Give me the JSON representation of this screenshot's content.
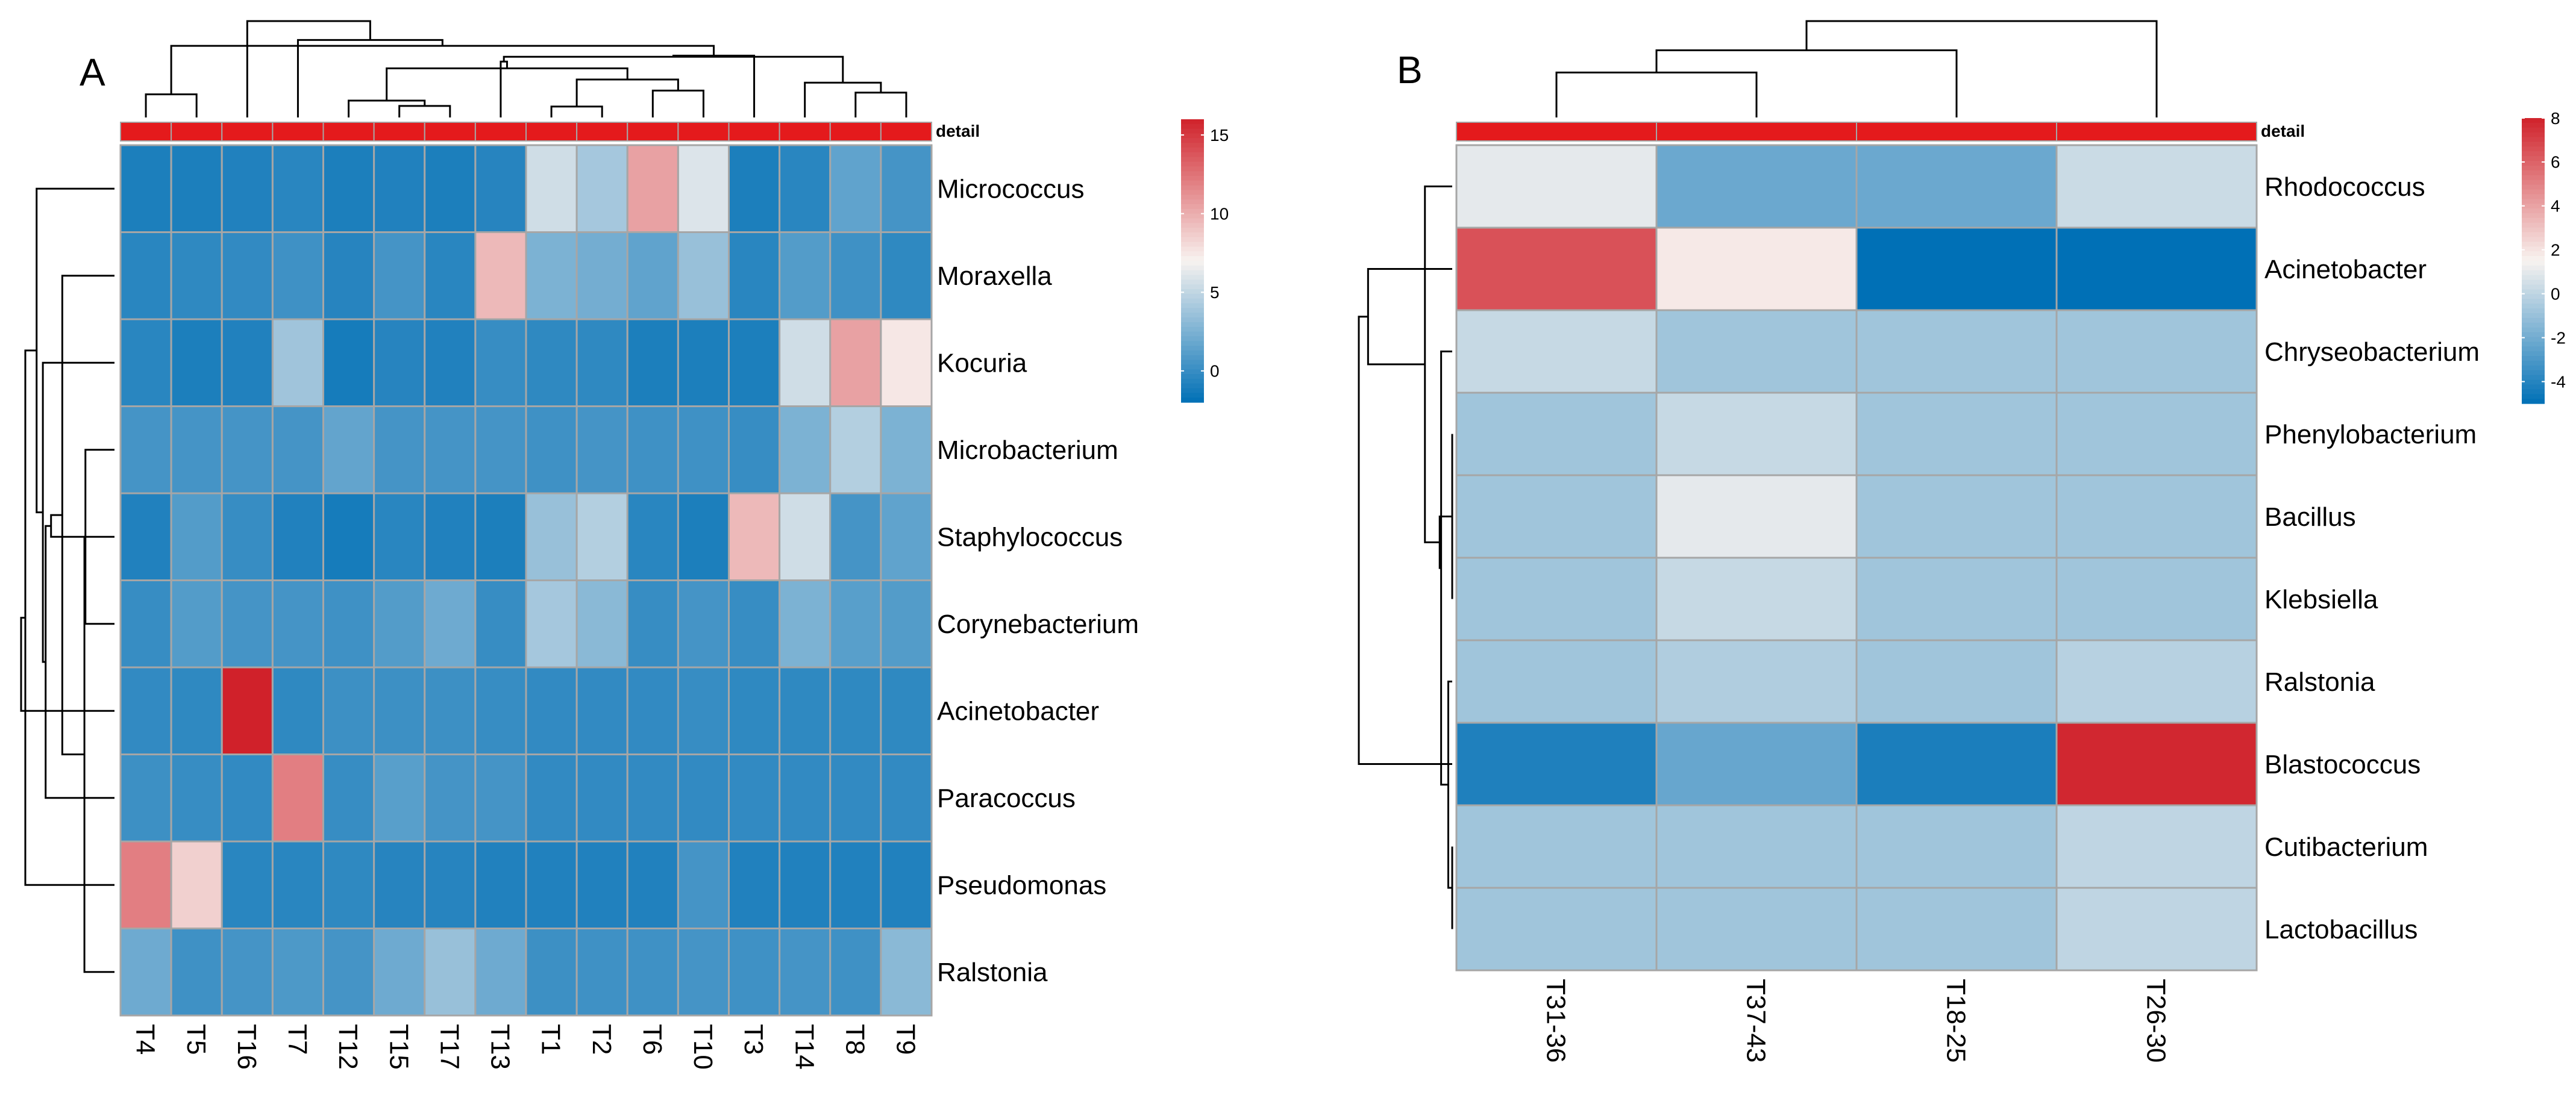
{
  "chart_data": [
    {
      "type": "heatmap",
      "panel_label": "A",
      "annotation_label": "detail",
      "columns": [
        "T4",
        "T5",
        "T16",
        "T7",
        "T12",
        "T15",
        "T17",
        "T13",
        "T1",
        "T2",
        "T6",
        "T10",
        "T3",
        "T14",
        "T8",
        "T9"
      ],
      "rows": [
        "Micrococcus",
        "Moraxella",
        "Kocuria",
        "Microbacterium",
        "Staphylococcus",
        "Corynebacterium",
        "Acinetobacter",
        "Paracoccus",
        "Pseudomonas",
        "Ralstonia"
      ],
      "values": [
        [
          -1.0,
          -1.0,
          -0.8,
          -0.5,
          -1.0,
          -0.8,
          -1.0,
          -0.6,
          5.5,
          4.0,
          10.5,
          6.0,
          -1.0,
          -0.5,
          1.5,
          0.5
        ],
        [
          -0.5,
          -0.3,
          -0.2,
          0.3,
          -0.6,
          0.5,
          -0.5,
          9.5,
          2.5,
          2.2,
          1.5,
          3.5,
          -0.5,
          1.0,
          0.3,
          -0.3
        ],
        [
          -0.5,
          -1.0,
          -0.8,
          3.8,
          -1.2,
          -0.6,
          -0.8,
          0.0,
          -0.3,
          -0.3,
          -1.0,
          -1.0,
          -1.0,
          5.5,
          10.5,
          7.5
        ],
        [
          0.5,
          0.5,
          0.5,
          0.5,
          1.6,
          0.5,
          0.5,
          0.5,
          0.3,
          0.5,
          0.3,
          0.3,
          0.0,
          2.5,
          4.5,
          2.5
        ],
        [
          -0.8,
          1.0,
          0.0,
          -0.8,
          -1.2,
          -0.5,
          -0.8,
          -1.0,
          3.5,
          4.5,
          -0.5,
          -1.0,
          9.5,
          5.5,
          0.5,
          1.5
        ],
        [
          0.0,
          1.0,
          0.5,
          0.5,
          0.3,
          1.0,
          2.0,
          0.0,
          4.0,
          3.0,
          0.0,
          0.5,
          0.0,
          2.5,
          1.2,
          1.0
        ],
        [
          -0.2,
          -0.3,
          16.0,
          -0.3,
          0.2,
          0.2,
          0.2,
          0.0,
          -0.2,
          -0.2,
          -0.2,
          0.0,
          -0.3,
          -0.3,
          -0.3,
          -0.3
        ],
        [
          0.2,
          0.0,
          -0.2,
          12.0,
          0.0,
          1.2,
          0.5,
          0.5,
          -0.2,
          -0.2,
          -0.2,
          -0.2,
          -0.2,
          -0.2,
          -0.2,
          -0.2
        ],
        [
          12.0,
          8.5,
          -0.5,
          -0.5,
          -0.3,
          -0.6,
          -0.6,
          -0.8,
          -0.8,
          -0.8,
          -0.8,
          0.5,
          -0.8,
          -0.8,
          -0.8,
          -0.8
        ],
        [
          2.0,
          0.3,
          0.5,
          0.8,
          0.5,
          2.0,
          3.5,
          2.0,
          0.2,
          0.3,
          0.3,
          0.5,
          0.3,
          0.5,
          0.3,
          3.0
        ]
      ],
      "legend": {
        "min": -2,
        "max": 16,
        "ticks": [
          0,
          5,
          10,
          15
        ]
      }
    },
    {
      "type": "heatmap",
      "panel_label": "B",
      "annotation_label": "detail",
      "columns": [
        "T31-36",
        "T37-43",
        "T18-25",
        "T26-30"
      ],
      "rows": [
        "Rhodococcus",
        "Acinetobacter",
        "Chryseobacterium",
        "Phenylobacterium",
        "Bacillus",
        "Klebsiella",
        "Ralstonia",
        "Blastococcus",
        "Cutibacterium",
        "Lactobacillus"
      ],
      "values": [
        [
          1.0,
          -2.2,
          -2.2,
          0.3
        ],
        [
          6.5,
          1.8,
          -5.0,
          -5.0
        ],
        [
          0.2,
          -0.8,
          -0.8,
          -0.8
        ],
        [
          -0.8,
          0.2,
          -0.8,
          -0.8
        ],
        [
          -0.8,
          1.0,
          -0.8,
          -0.8
        ],
        [
          -0.8,
          0.2,
          -0.8,
          -0.8
        ],
        [
          -0.8,
          -0.4,
          -0.8,
          -0.2
        ],
        [
          -4.2,
          -2.3,
          -4.3,
          7.8
        ],
        [
          -0.8,
          -0.8,
          -0.8,
          0.0
        ],
        [
          -0.8,
          -0.8,
          -0.8,
          0.0
        ]
      ],
      "legend": {
        "min": -5,
        "max": 8,
        "ticks": [
          -4,
          -2,
          0,
          2,
          4,
          6,
          8
        ]
      }
    }
  ],
  "colors": {
    "low": "#0070B6",
    "mid": "#F8F3F0",
    "high": "#D0212A",
    "annotation": "#E41A1C",
    "cell_border": "#A6A6A6",
    "tree": "#000000"
  }
}
